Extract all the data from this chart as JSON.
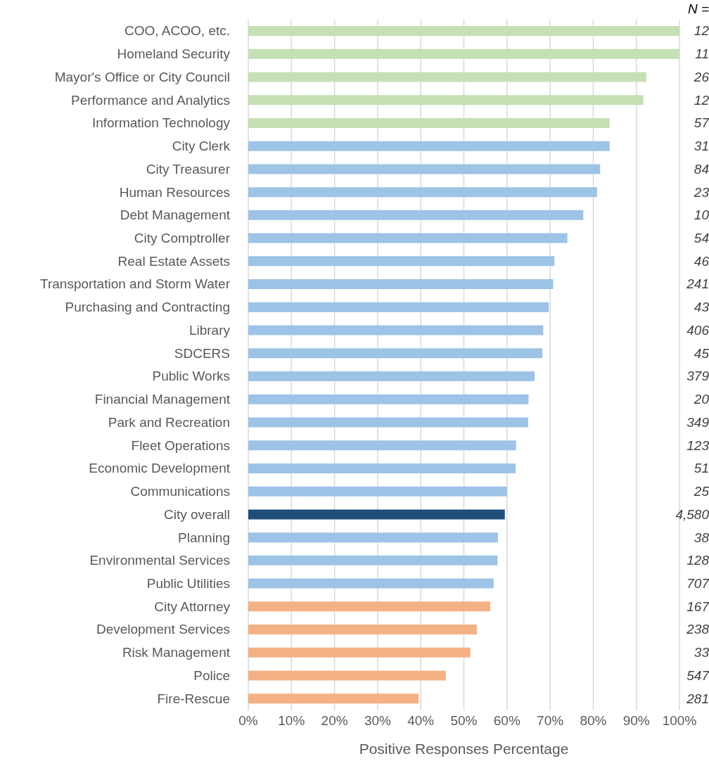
{
  "chart_data": {
    "type": "bar",
    "orientation": "horizontal",
    "xlabel": "Positive Responses Percentage",
    "categories": [
      "COO, ACOO, etc.",
      "Homeland Security",
      "Mayor's Office or City Council",
      "Performance and Analytics",
      "Information Technology",
      "City Clerk",
      "City Treasurer",
      "Human Resources",
      "Debt Management",
      "City Comptroller",
      "Real Estate Assets",
      "Transportation and Storm Water",
      "Purchasing and Contracting",
      "Library",
      "SDCERS",
      "Public Works",
      "Financial Management",
      "Park and Recreation",
      "Fleet Operations",
      "Economic Development",
      "Communications",
      "City overall",
      "Planning",
      "Environmental Services",
      "Public Utilities",
      "City Attorney",
      "Development Services",
      "Risk Management",
      "Police",
      "Fire-Rescue"
    ],
    "values": [
      100,
      100,
      92.3,
      91.6,
      83.8,
      83.8,
      81.6,
      80.9,
      77.7,
      74.0,
      71.0,
      70.7,
      69.7,
      68.4,
      68.2,
      66.4,
      65.0,
      64.9,
      62.1,
      62.0,
      60.0,
      59.5,
      57.9,
      57.8,
      56.9,
      56.1,
      53.0,
      51.5,
      45.8,
      39.5
    ],
    "colors": [
      "#c5e0b4",
      "#c5e0b4",
      "#c5e0b4",
      "#c5e0b4",
      "#c5e0b4",
      "#9dc3e6",
      "#9dc3e6",
      "#9dc3e6",
      "#9dc3e6",
      "#9dc3e6",
      "#9dc3e6",
      "#9dc3e6",
      "#9dc3e6",
      "#9dc3e6",
      "#9dc3e6",
      "#9dc3e6",
      "#9dc3e6",
      "#9dc3e6",
      "#9dc3e6",
      "#9dc3e6",
      "#9dc3e6",
      "#1f4e79",
      "#9dc3e6",
      "#9dc3e6",
      "#9dc3e6",
      "#f4b183",
      "#f4b183",
      "#f4b183",
      "#f4b183",
      "#f4b183"
    ],
    "xlim": [
      0,
      100
    ],
    "xticks": [
      {
        "value": 0,
        "label": "0%"
      },
      {
        "value": 10,
        "label": "10%"
      },
      {
        "value": 20,
        "label": "20%"
      },
      {
        "value": 30,
        "label": "30%"
      },
      {
        "value": 40,
        "label": "40%"
      },
      {
        "value": 50,
        "label": "50%"
      },
      {
        "value": 60,
        "label": "60%"
      },
      {
        "value": 70,
        "label": "70%"
      },
      {
        "value": 80,
        "label": "80%"
      },
      {
        "value": 90,
        "label": "90%"
      },
      {
        "value": 100,
        "label": "100%"
      }
    ],
    "grid": "x",
    "annotations": [
      "N =",
      "12",
      "11",
      "26",
      "12",
      "57",
      "31",
      "84",
      "23",
      "10",
      "54",
      "46",
      "241",
      "43",
      "406",
      "45",
      "379",
      "20",
      "349",
      "123",
      "51",
      "25",
      "4,580",
      "38",
      "128",
      "707",
      "167",
      "238",
      "33",
      "547",
      "281"
    ]
  }
}
